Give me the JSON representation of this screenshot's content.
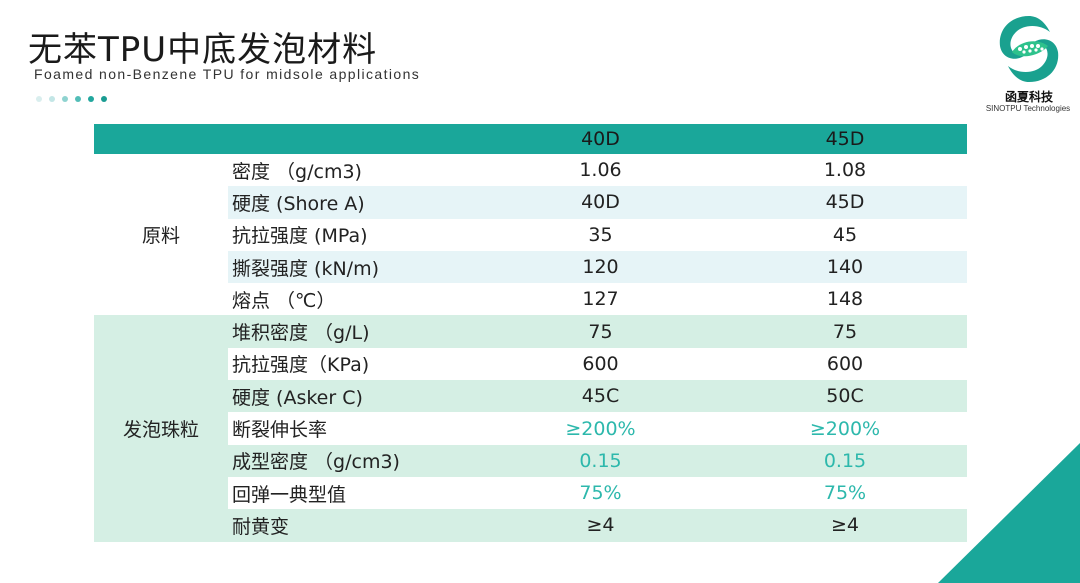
{
  "header": {
    "title": "无苯TPU中底发泡材料",
    "subtitle": "Foamed non-Benzene TPU for midsole applications"
  },
  "dots": [
    "#d9eeee",
    "#c3e6e6",
    "#8fd3d0",
    "#52bdb7",
    "#22a79e",
    "#1a9c92"
  ],
  "logo": {
    "name_cn": "函夏科技",
    "name_en": "SINOTPU Technologies",
    "icon": "green-swirl-logo-icon"
  },
  "colors": {
    "header_teal": "#1aa79a",
    "highlight_text": "#2db8ac",
    "light_blue_row": "#e6f4f7",
    "light_green_row": "#d5efe4",
    "corner_teal": "#1aa79a"
  },
  "table": {
    "columns": [
      "",
      "",
      "40D",
      "45D"
    ],
    "groups": [
      {
        "label": "原料",
        "rows": [
          {
            "prop": "密度 （g/cm3)",
            "v1": "1.06",
            "v2": "1.08"
          },
          {
            "prop": "硬度 (Shore A)",
            "v1": "40D",
            "v2": "45D"
          },
          {
            "prop": "抗拉强度 (MPa)",
            "v1": "35",
            "v2": "45"
          },
          {
            "prop": "撕裂强度 (kN/m)",
            "v1": "120",
            "v2": "140"
          },
          {
            "prop": "熔点 （℃）",
            "v1": "127",
            "v2": "148"
          }
        ]
      },
      {
        "label": "发泡珠粒",
        "rows": [
          {
            "prop": "堆积密度 （g/L)",
            "v1": "75",
            "v2": "75"
          },
          {
            "prop": "抗拉强度（KPa)",
            "v1": "600",
            "v2": "600"
          },
          {
            "prop": "硬度 (Asker C)",
            "v1": "45C",
            "v2": "50C"
          },
          {
            "prop": "断裂伸长率",
            "v1": "≥200%",
            "v2": "≥200%",
            "highlight": true
          },
          {
            "prop": "成型密度 （g/cm3)",
            "v1": "0.15",
            "v2": "0.15",
            "highlight": true
          },
          {
            "prop": "回弹一典型值",
            "v1": "75%",
            "v2": "75%",
            "highlight": true
          },
          {
            "prop": "耐黄变",
            "v1": "≥4",
            "v2": "≥4"
          }
        ]
      }
    ]
  }
}
